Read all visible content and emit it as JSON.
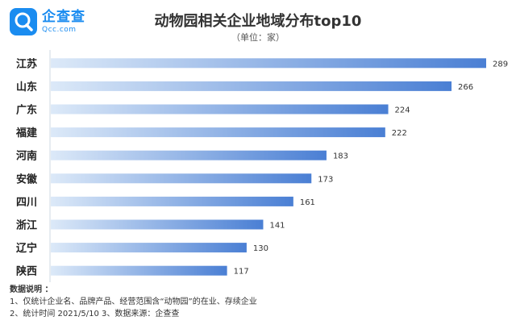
{
  "logo": {
    "name": "企查查",
    "sub": "Qcc.com",
    "color": "#1a8cf0"
  },
  "chart_data": {
    "type": "bar",
    "orientation": "horizontal",
    "title": "动物园相关企业地域分布top10",
    "subtitle": "（单位：家）",
    "categories": [
      "江苏",
      "山东",
      "广东",
      "福建",
      "河南",
      "安徽",
      "四川",
      "浙江",
      "辽宁",
      "陕西"
    ],
    "values": [
      289,
      266,
      224,
      222,
      183,
      173,
      161,
      141,
      130,
      117
    ],
    "xlim": [
      0,
      289
    ],
    "grid": false,
    "legend": false,
    "bar_color_light": "#dce9f8",
    "bar_color_dark": "#4a7fd4"
  },
  "notes": {
    "title": "数据说明 ：",
    "lines": [
      "1、仅统计企业名、品牌产品、经营范围含“动物园”的在业、存续企业",
      "2、统计时间  2021/5/10        3、数据来源：企查查"
    ]
  }
}
